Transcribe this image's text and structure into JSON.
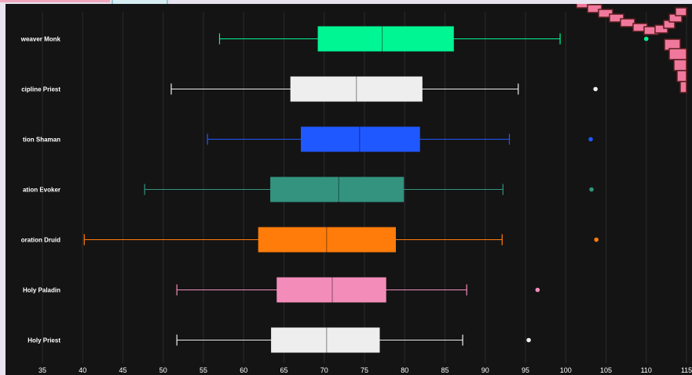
{
  "chart_data": {
    "type": "boxplot",
    "orientation": "horizontal",
    "categories": [
      "weaver Monk",
      "cipline Priest",
      "tion Shaman",
      "ation Evoker",
      "oration Druid",
      "Holy Paladin",
      "Holy Priest"
    ],
    "colors": [
      "#00f593",
      "#eeeeee",
      "#2058ff",
      "#33937f",
      "#ff7c0a",
      "#f48cba",
      "#eeeeee"
    ],
    "boxes": [
      {
        "min": 57,
        "q1": 69.2,
        "median": 77.2,
        "q3": 86.1,
        "max": 99.3,
        "outlier": 110
      },
      {
        "min": 51,
        "q1": 65.8,
        "median": 74,
        "q3": 82.2,
        "max": 94.1,
        "outlier": 103.7
      },
      {
        "min": 55.5,
        "q1": 67.1,
        "median": 74.4,
        "q3": 81.9,
        "max": 93,
        "outlier": 103.1
      },
      {
        "min": 47.7,
        "q1": 63.3,
        "median": 71.8,
        "q3": 79.9,
        "max": 92.2,
        "outlier": 103.2
      },
      {
        "min": 40.2,
        "q1": 61.8,
        "median": 70.3,
        "q3": 78.9,
        "max": 92.1,
        "outlier": 103.8
      },
      {
        "min": 51.7,
        "q1": 64.1,
        "median": 71,
        "q3": 77.7,
        "max": 87.7,
        "outlier": 96.5
      },
      {
        "min": 51.7,
        "q1": 63.4,
        "median": 70.3,
        "q3": 76.9,
        "max": 87.2,
        "outlier": 95.4
      }
    ],
    "xticks": [
      35,
      40,
      45,
      50,
      55,
      60,
      65,
      70,
      75,
      80,
      85,
      90,
      95,
      100,
      105,
      110,
      115
    ],
    "xlim": [
      34,
      116
    ],
    "grid": true
  }
}
